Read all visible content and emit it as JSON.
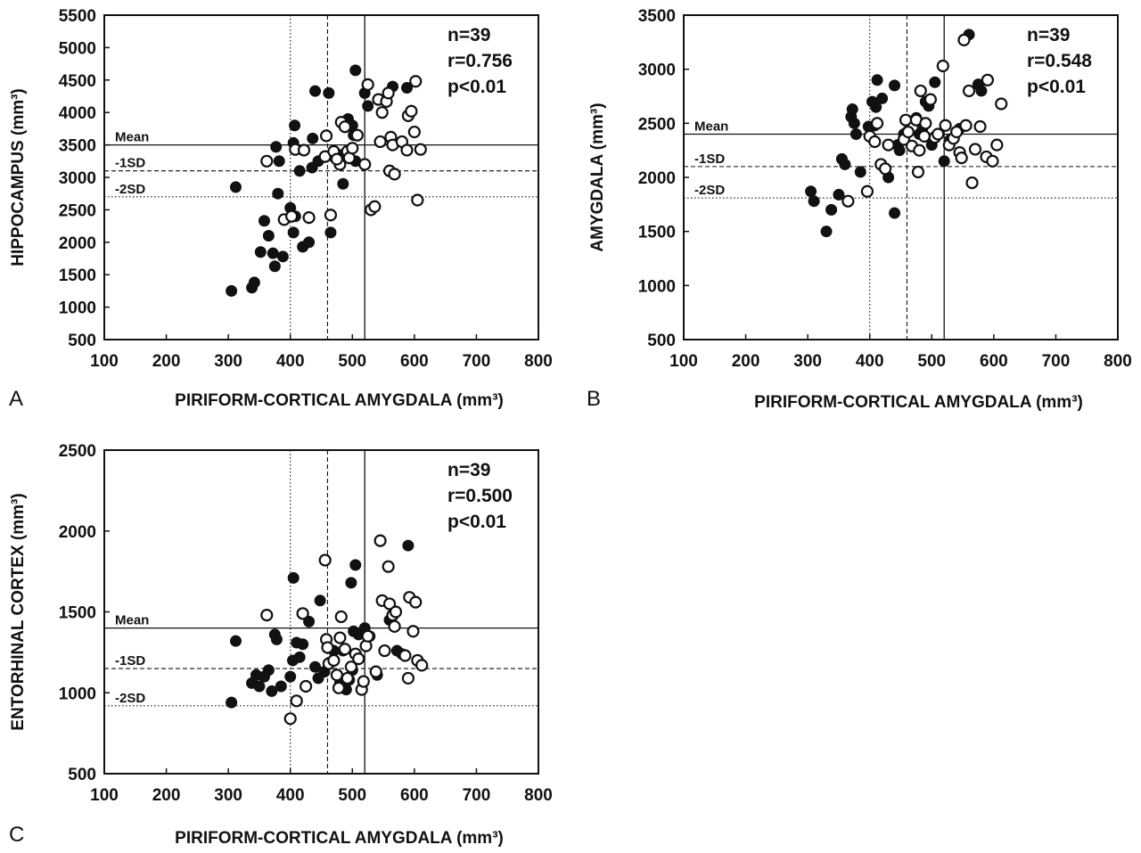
{
  "chart_data": [
    {
      "panel_label": "A",
      "type": "scatter",
      "xlabel": "PIRIFORM-CORTICAL AMYGDALA (mm³)",
      "ylabel": "HIPPOCAMPUS (mm³)",
      "xlim": [
        100,
        800
      ],
      "ylim": [
        500,
        5500
      ],
      "xticks": [
        100,
        200,
        300,
        400,
        500,
        600,
        700,
        800
      ],
      "yticks": [
        500,
        1000,
        1500,
        2000,
        2500,
        3000,
        3500,
        4000,
        4500,
        5000,
        5500
      ],
      "stats": [
        "n=39",
        "r=0.756",
        "p<0.01"
      ],
      "hlines": [
        {
          "label": "Mean",
          "y": 3500,
          "style": "solid"
        },
        {
          "label": "-1SD",
          "y": 3100,
          "style": "dashed"
        },
        {
          "label": "-2SD",
          "y": 2700,
          "style": "dotted"
        }
      ],
      "vlines": [
        {
          "x": 400,
          "style": "dotted"
        },
        {
          "x": 460,
          "style": "dashed"
        },
        {
          "x": 520,
          "style": "solid"
        }
      ],
      "series": [
        {
          "marker": "filled",
          "points": [
            [
              305,
              1250
            ],
            [
              312,
              2850
            ],
            [
              338,
              1300
            ],
            [
              342,
              1380
            ],
            [
              352,
              1850
            ],
            [
              358,
              2330
            ],
            [
              365,
              2100
            ],
            [
              372,
              1830
            ],
            [
              375,
              1630
            ],
            [
              377,
              3470
            ],
            [
              380,
              2750
            ],
            [
              382,
              3250
            ],
            [
              388,
              1780
            ],
            [
              400,
              2530
            ],
            [
              405,
              2150
            ],
            [
              405,
              3530
            ],
            [
              407,
              3800
            ],
            [
              408,
              2400
            ],
            [
              415,
              3100
            ],
            [
              420,
              1930
            ],
            [
              430,
              2000
            ],
            [
              435,
              3150
            ],
            [
              436,
              3600
            ],
            [
              440,
              4330
            ],
            [
              445,
              3250
            ],
            [
              462,
              4300
            ],
            [
              465,
              2150
            ],
            [
              472,
              3300
            ],
            [
              478,
              3350
            ],
            [
              485,
              2900
            ],
            [
              493,
              3900
            ],
            [
              500,
              3800
            ],
            [
              502,
              3650
            ],
            [
              505,
              3250
            ],
            [
              505,
              4650
            ],
            [
              520,
              4300
            ],
            [
              525,
              4100
            ],
            [
              565,
              4400
            ],
            [
              588,
              4380
            ]
          ]
        },
        {
          "marker": "open",
          "points": [
            [
              362,
              3250
            ],
            [
              390,
              2350
            ],
            [
              402,
              2400
            ],
            [
              408,
              3430
            ],
            [
              422,
              3420
            ],
            [
              430,
              2380
            ],
            [
              456,
              3320
            ],
            [
              458,
              3640
            ],
            [
              465,
              2420
            ],
            [
              470,
              3400
            ],
            [
              480,
              3200
            ],
            [
              482,
              3850
            ],
            [
              488,
              3780
            ],
            [
              492,
              3400
            ],
            [
              495,
              3300
            ],
            [
              500,
              3450
            ],
            [
              508,
              3650
            ],
            [
              520,
              3200
            ],
            [
              525,
              4430
            ],
            [
              530,
              2500
            ],
            [
              536,
              2550
            ],
            [
              542,
              4200
            ],
            [
              545,
              3550
            ],
            [
              548,
              4000
            ],
            [
              555,
              4170
            ],
            [
              558,
              4300
            ],
            [
              560,
              3100
            ],
            [
              562,
              3620
            ],
            [
              565,
              3500
            ],
            [
              568,
              3050
            ],
            [
              580,
              3550
            ],
            [
              588,
              3420
            ],
            [
              590,
              3950
            ],
            [
              595,
              4020
            ],
            [
              600,
              3700
            ],
            [
              602,
              4480
            ],
            [
              605,
              2650
            ],
            [
              610,
              3430
            ],
            [
              475,
              3280
            ]
          ]
        }
      ]
    },
    {
      "panel_label": "B",
      "type": "scatter",
      "xlabel": "PIRIFORM-CORTICAL AMYGDALA (mm³)",
      "ylabel": "AMYGDALA (mm³)",
      "xlim": [
        100,
        800
      ],
      "ylim": [
        500,
        3500
      ],
      "xticks": [
        100,
        200,
        300,
        400,
        500,
        600,
        700,
        800
      ],
      "yticks": [
        500,
        1000,
        1500,
        2000,
        2500,
        3000,
        3500
      ],
      "stats": [
        "n=39",
        "r=0.548",
        "p<0.01"
      ],
      "hlines": [
        {
          "label": "Mean",
          "y": 2400,
          "style": "solid"
        },
        {
          "label": "-1SD",
          "y": 2100,
          "style": "dashed"
        },
        {
          "label": "-2SD",
          "y": 1810,
          "style": "dotted"
        }
      ],
      "vlines": [
        {
          "x": 400,
          "style": "dotted"
        },
        {
          "x": 460,
          "style": "dashed"
        },
        {
          "x": 520,
          "style": "solid"
        }
      ],
      "series": [
        {
          "marker": "filled",
          "points": [
            [
              305,
              1870
            ],
            [
              310,
              1780
            ],
            [
              330,
              1500
            ],
            [
              338,
              1700
            ],
            [
              350,
              1840
            ],
            [
              355,
              2170
            ],
            [
              360,
              2120
            ],
            [
              370,
              2560
            ],
            [
              372,
              2630
            ],
            [
              375,
              2500
            ],
            [
              378,
              2400
            ],
            [
              385,
              2050
            ],
            [
              398,
              2470
            ],
            [
              404,
              2700
            ],
            [
              408,
              2480
            ],
            [
              410,
              2650
            ],
            [
              412,
              2900
            ],
            [
              420,
              2730
            ],
            [
              430,
              2000
            ],
            [
              440,
              1670
            ],
            [
              440,
              2850
            ],
            [
              445,
              2300
            ],
            [
              448,
              2250
            ],
            [
              455,
              2400
            ],
            [
              460,
              2420
            ],
            [
              475,
              2550
            ],
            [
              480,
              2400
            ],
            [
              485,
              2450
            ],
            [
              490,
              2700
            ],
            [
              495,
              2660
            ],
            [
              500,
              2300
            ],
            [
              505,
              2880
            ],
            [
              520,
              2150
            ],
            [
              530,
              2350
            ],
            [
              545,
              2450
            ],
            [
              560,
              3320
            ],
            [
              575,
              2860
            ],
            [
              580,
              2800
            ],
            [
              590,
              2900
            ]
          ]
        },
        {
          "marker": "open",
          "points": [
            [
              365,
              1780
            ],
            [
              396,
              1870
            ],
            [
              400,
              2380
            ],
            [
              408,
              2330
            ],
            [
              412,
              2500
            ],
            [
              418,
              2120
            ],
            [
              425,
              2080
            ],
            [
              430,
              2300
            ],
            [
              455,
              2350
            ],
            [
              458,
              2530
            ],
            [
              462,
              2420
            ],
            [
              468,
              2290
            ],
            [
              475,
              2530
            ],
            [
              478,
              2050
            ],
            [
              480,
              2250
            ],
            [
              482,
              2800
            ],
            [
              488,
              2380
            ],
            [
              490,
              2500
            ],
            [
              498,
              2720
            ],
            [
              505,
              2370
            ],
            [
              510,
              2400
            ],
            [
              518,
              3030
            ],
            [
              522,
              2480
            ],
            [
              528,
              2300
            ],
            [
              535,
              2360
            ],
            [
              540,
              2420
            ],
            [
              545,
              2230
            ],
            [
              548,
              2180
            ],
            [
              552,
              3270
            ],
            [
              555,
              2480
            ],
            [
              560,
              2800
            ],
            [
              565,
              1950
            ],
            [
              570,
              2260
            ],
            [
              578,
              2470
            ],
            [
              588,
              2190
            ],
            [
              590,
              2900
            ],
            [
              598,
              2150
            ],
            [
              605,
              2300
            ],
            [
              612,
              2680
            ]
          ]
        }
      ]
    },
    {
      "panel_label": "C",
      "type": "scatter",
      "xlabel": "PIRIFORM-CORTICAL AMYGDALA (mm³)",
      "ylabel": "ENTORHINAL CORTEX (mm³)",
      "xlim": [
        100,
        800
      ],
      "ylim": [
        500,
        2500
      ],
      "xticks": [
        100,
        200,
        300,
        400,
        500,
        600,
        700,
        800
      ],
      "yticks": [
        500,
        1000,
        1500,
        2000,
        2500
      ],
      "stats": [
        "n=39",
        "r=0.500",
        "p<0.01"
      ],
      "hlines": [
        {
          "label": "Mean",
          "y": 1400,
          "style": "solid"
        },
        {
          "label": "-1SD",
          "y": 1150,
          "style": "dashed"
        },
        {
          "label": "-2SD",
          "y": 920,
          "style": "dotted"
        }
      ],
      "vlines": [
        {
          "x": 400,
          "style": "dotted"
        },
        {
          "x": 460,
          "style": "dashed"
        },
        {
          "x": 520,
          "style": "solid"
        }
      ],
      "series": [
        {
          "marker": "filled",
          "points": [
            [
              305,
              940
            ],
            [
              312,
              1320
            ],
            [
              338,
              1060
            ],
            [
              345,
              1110
            ],
            [
              350,
              1040
            ],
            [
              358,
              1100
            ],
            [
              365,
              1140
            ],
            [
              370,
              1010
            ],
            [
              375,
              1360
            ],
            [
              378,
              1330
            ],
            [
              385,
              1040
            ],
            [
              400,
              1100
            ],
            [
              404,
              1200
            ],
            [
              405,
              1710
            ],
            [
              410,
              1310
            ],
            [
              415,
              1220
            ],
            [
              420,
              1300
            ],
            [
              430,
              1440
            ],
            [
              440,
              1160
            ],
            [
              445,
              1090
            ],
            [
              448,
              1570
            ],
            [
              455,
              1130
            ],
            [
              470,
              1260
            ],
            [
              480,
              1060
            ],
            [
              485,
              1260
            ],
            [
              490,
              1020
            ],
            [
              495,
              1080
            ],
            [
              498,
              1680
            ],
            [
              500,
              1140
            ],
            [
              502,
              1380
            ],
            [
              505,
              1790
            ],
            [
              510,
              1360
            ],
            [
              520,
              1400
            ],
            [
              528,
              1350
            ],
            [
              540,
              1110
            ],
            [
              560,
              1450
            ],
            [
              572,
              1260
            ],
            [
              580,
              1240
            ],
            [
              590,
              1910
            ]
          ]
        },
        {
          "marker": "open",
          "points": [
            [
              362,
              1480
            ],
            [
              400,
              840
            ],
            [
              410,
              950
            ],
            [
              420,
              1490
            ],
            [
              425,
              1040
            ],
            [
              456,
              1820
            ],
            [
              458,
              1330
            ],
            [
              460,
              1280
            ],
            [
              462,
              1180
            ],
            [
              470,
              1200
            ],
            [
              475,
              1110
            ],
            [
              478,
              1030
            ],
            [
              480,
              1340
            ],
            [
              482,
              1470
            ],
            [
              488,
              1270
            ],
            [
              492,
              1090
            ],
            [
              498,
              1160
            ],
            [
              505,
              1240
            ],
            [
              510,
              1210
            ],
            [
              515,
              1020
            ],
            [
              518,
              1070
            ],
            [
              522,
              1290
            ],
            [
              525,
              1350
            ],
            [
              538,
              1130
            ],
            [
              545,
              1940
            ],
            [
              548,
              1570
            ],
            [
              552,
              1260
            ],
            [
              558,
              1780
            ],
            [
              560,
              1550
            ],
            [
              565,
              1480
            ],
            [
              568,
              1410
            ],
            [
              570,
              1500
            ],
            [
              585,
              1230
            ],
            [
              590,
              1090
            ],
            [
              592,
              1590
            ],
            [
              598,
              1380
            ],
            [
              602,
              1560
            ],
            [
              605,
              1200
            ],
            [
              612,
              1170
            ]
          ]
        }
      ]
    }
  ]
}
